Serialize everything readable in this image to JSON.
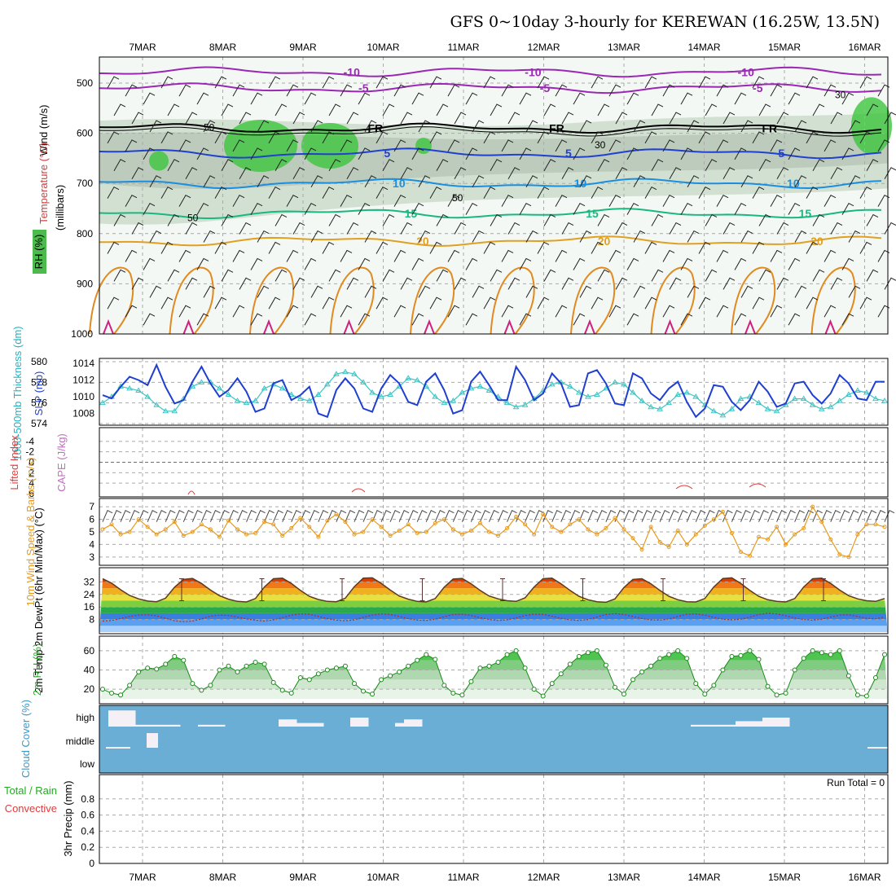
{
  "title": "GFS 0~10day 3-hourly for KEREWAN (16.25W, 13.5N)",
  "colors": {
    "cloud_bg": "#6aaed6",
    "rh_fill": "#3cc43c",
    "sfc_temp_fill": "#e03c00",
    "dewpt_fill": "#3a7fe0",
    "slp_line": "#1f3fd0",
    "thk_line": "#3fc4c4",
    "wind_line": "#e89a1c",
    "cape_lbl": "#c070c0",
    "li_lbl": "#e03c3c",
    "rh_lbl": "#22aa22",
    "precip_rain": "#22aa22",
    "precip_conv": "#e03c3c"
  },
  "chart_data": [
    {
      "type": "heatmap",
      "panel": "upper-air cross section",
      "x_dates": [
        "7MAR",
        "8MAR",
        "9MAR",
        "10MAR",
        "11MAR",
        "12MAR",
        "13MAR",
        "14MAR",
        "15MAR",
        "16MAR"
      ],
      "yticks": [
        "500",
        "600",
        "700",
        "800",
        "900",
        "1000"
      ],
      "ylabel": "(millibars)",
      "labels": [
        "Wind (m/s)",
        "Temperature (°C)",
        "RH (%)"
      ],
      "isotherm_labels": [
        "-10",
        "-5",
        "FR",
        "5",
        "10",
        "15",
        "20"
      ],
      "rh_contour_labels": [
        "30",
        "50"
      ],
      "isotherms_mb": [
        {
          "label": "-10",
          "mb": 478,
          "color": "#9a28b4"
        },
        {
          "label": "-5",
          "mb": 510,
          "color": "#9a28b4"
        },
        {
          "label": "FR",
          "mb": 590,
          "color": "#000000"
        },
        {
          "label": "5",
          "mb": 640,
          "color": "#2040d0"
        },
        {
          "label": "10",
          "mb": 700,
          "color": "#1c8ee0"
        },
        {
          "label": "15",
          "mb": 760,
          "color": "#18b880"
        },
        {
          "label": "20",
          "mb": 815,
          "color": "#e0a020"
        }
      ]
    },
    {
      "type": "line",
      "panel": "slp and thickness",
      "ylabel_left": "1000-500mb Thickness (dm)",
      "ylabel_right": "SLP (mb)",
      "yticks_left": [
        "580",
        "578",
        "576",
        "574"
      ],
      "yticks_right": [
        "1014",
        "1012",
        "1010",
        "1008"
      ],
      "ylim_left": [
        574,
        580
      ],
      "ylim_right": [
        1006.8,
        1014.2
      ],
      "series": [
        {
          "name": "SLP (mb)",
          "axis": "right",
          "values": [
            1010.2,
            1009.8,
            1011.2,
            1012.4,
            1012.0,
            1011.4,
            1013.8,
            1011.2,
            1009.2,
            1009.6,
            1011.8,
            1013.6,
            1011.6,
            1010.0,
            1010.8,
            1012.2,
            1010.6,
            1008.2,
            1008.6,
            1011.6,
            1012.0,
            1009.6,
            1010.2,
            1011.2,
            1008.0,
            1007.6,
            1010.8,
            1012.2,
            1011.0,
            1008.6,
            1008.2,
            1011.0,
            1012.6,
            1011.6,
            1009.4,
            1009.0,
            1011.8,
            1012.8,
            1010.8,
            1008.0,
            1008.4,
            1011.8,
            1013.0,
            1011.4,
            1009.6,
            1009.6,
            1013.6,
            1012.0,
            1009.6,
            1010.4,
            1012.8,
            1011.6,
            1008.8,
            1009.0,
            1012.8,
            1013.2,
            1011.6,
            1009.2,
            1009.0,
            1012.8,
            1012.2,
            1010.4,
            1009.6,
            1011.0,
            1011.8,
            1009.4,
            1007.6,
            1008.6,
            1011.4,
            1011.2,
            1009.4,
            1008.4,
            1009.6,
            1011.8,
            1010.6,
            1008.8,
            1009.2,
            1011.6,
            1011.8,
            1010.2,
            1009.2,
            1010.4,
            1012.6,
            1011.6,
            1009.8,
            1009.6,
            1011.8,
            1011.8
          ]
        },
        {
          "name": "1000-500mb Thickness (dm)",
          "axis": "left",
          "values": [
            576.0,
            576.6,
            577.6,
            577.4,
            577.2,
            576.6,
            575.8,
            575.2,
            575.2,
            576.4,
            577.6,
            578.0,
            578.0,
            577.4,
            576.8,
            576.2,
            576.0,
            576.2,
            577.4,
            577.8,
            577.4,
            576.8,
            576.4,
            576.2,
            576.8,
            577.8,
            578.8,
            579.0,
            578.8,
            578.0,
            577.0,
            576.6,
            576.8,
            577.6,
            578.4,
            578.2,
            577.6,
            576.6,
            576.0,
            576.2,
            577.0,
            577.4,
            577.6,
            577.2,
            576.6,
            576.0,
            575.6,
            575.8,
            576.4,
            577.2,
            577.8,
            578.0,
            577.6,
            577.0,
            576.6,
            576.8,
            577.4,
            578.0,
            577.8,
            577.0,
            576.2,
            575.6,
            575.4,
            576.0,
            576.8,
            577.0,
            576.6,
            575.8,
            575.2,
            574.8,
            575.4,
            576.4,
            576.6,
            576.0,
            575.4,
            575.2,
            575.8,
            576.4,
            576.4,
            575.8,
            575.4,
            575.6,
            576.2,
            576.8,
            577.2,
            577.0,
            576.4,
            576.2
          ]
        }
      ]
    },
    {
      "type": "line",
      "panel": "lifted index and cape",
      "ylabel_left": "Lifted Index",
      "ylabel_right": "CAPE (J/kg)",
      "yticks": [
        "-4",
        "-2",
        "0",
        "2",
        "4",
        "6"
      ],
      "ylim": [
        -6,
        6
      ],
      "values_li": []
    },
    {
      "type": "line",
      "panel": "10m wind",
      "ylabel": "10m Wind Speed & Barbs (m/s)",
      "yticks": [
        "7",
        "6",
        "5",
        "4",
        "3"
      ],
      "ylim": [
        2.6,
        7.4
      ],
      "series": [
        {
          "name": "10m Wind Speed",
          "values": [
            5.2,
            5.6,
            4.8,
            5.0,
            6.0,
            5.4,
            4.8,
            5.2,
            5.8,
            4.7,
            5.0,
            5.6,
            5.2,
            4.6,
            5.9,
            5.2,
            4.8,
            4.9,
            5.8,
            5.6,
            4.7,
            5.3,
            6.1,
            5.4,
            4.6,
            5.9,
            6.4,
            5.8,
            4.8,
            5.0,
            6.0,
            5.4,
            4.7,
            5.1,
            5.6,
            4.9,
            5.0,
            5.7,
            6.0,
            5.2,
            4.8,
            5.1,
            5.7,
            5.0,
            4.7,
            5.3,
            6.2,
            5.6,
            4.8,
            6.4,
            5.4,
            5.0,
            5.6,
            6.0,
            5.2,
            4.8,
            5.3,
            6.1,
            5.2,
            4.5,
            3.6,
            5.4,
            4.2,
            3.8,
            5.1,
            4.0,
            4.8,
            5.5,
            6.0,
            6.6,
            4.9,
            3.4,
            3.1,
            4.6,
            4.4,
            5.4,
            4.0,
            4.8,
            5.3,
            7.0,
            5.8,
            4.4,
            3.2,
            3.0,
            4.8,
            5.6,
            5.6,
            5.4
          ]
        }
      ]
    },
    {
      "type": "area",
      "panel": "2m temperature and dewpoint",
      "ylabel": "2m Temp 2m DewPt (6hr Min/Max) (°C)",
      "yticks": [
        "32",
        "24",
        "16",
        "8"
      ],
      "ylim": [
        0,
        40
      ],
      "series": [
        {
          "name": "2m Temp",
          "values": [
            34.0,
            31.2,
            27.0,
            23.4,
            21.2,
            19.8,
            19.4,
            21.6,
            28.6,
            33.6,
            34.2,
            31.0,
            26.8,
            23.2,
            21.0,
            19.6,
            19.2,
            21.4,
            28.8,
            34.0,
            34.4,
            31.0,
            26.6,
            22.8,
            20.8,
            19.6,
            19.4,
            21.6,
            29.0,
            34.4,
            34.6,
            31.0,
            26.8,
            23.0,
            21.0,
            19.6,
            19.2,
            21.4,
            28.6,
            33.8,
            34.2,
            30.8,
            26.6,
            23.0,
            21.2,
            20.0,
            19.6,
            21.8,
            28.8,
            34.0,
            34.4,
            30.8,
            26.6,
            22.8,
            20.6,
            19.4,
            19.0,
            21.2,
            28.4,
            33.6,
            34.0,
            30.8,
            26.6,
            22.8,
            20.6,
            19.4,
            19.2,
            21.4,
            28.8,
            34.2,
            34.6,
            31.0,
            26.6,
            22.8,
            20.6,
            19.6,
            19.2,
            21.4,
            28.8,
            34.0,
            34.4,
            31.0,
            26.8,
            23.2,
            21.2,
            20.0,
            19.6,
            21.4
          ]
        },
        {
          "name": "2m DewPt",
          "values": [
            7.0,
            7.4,
            8.6,
            10.0,
            10.8,
            11.0,
            10.4,
            8.8,
            7.2,
            6.6,
            7.0,
            8.4,
            10.2,
            10.8,
            10.6,
            9.6,
            8.4,
            7.6,
            7.0,
            7.8,
            9.2,
            10.8,
            11.6,
            11.4,
            10.0,
            8.6,
            7.6,
            7.2,
            7.8,
            9.4,
            10.8,
            11.6,
            11.2,
            10.0,
            8.6,
            7.6,
            7.4,
            8.2,
            9.8,
            11.2,
            11.4,
            10.6,
            9.2,
            8.0,
            7.4,
            7.8,
            9.0,
            10.6,
            11.4,
            11.2,
            10.2,
            8.8,
            7.8,
            7.4,
            8.0,
            9.6,
            11.2,
            11.8,
            11.2,
            10.0,
            8.6,
            7.8,
            7.6,
            8.4,
            10.0,
            11.4,
            11.6,
            10.8,
            9.4,
            8.2,
            7.8,
            8.2,
            9.6,
            11.2,
            12.0,
            11.6,
            10.4,
            9.0,
            8.0,
            7.6,
            8.2,
            9.6,
            10.8,
            11.0,
            10.0,
            8.8,
            8.4,
            9.6
          ]
        }
      ]
    },
    {
      "type": "area",
      "panel": "2m relative humidity",
      "ylabel": "2m RH (%)",
      "yticks": [
        "60",
        "40",
        "20"
      ],
      "ylim": [
        10,
        70
      ],
      "series": [
        {
          "name": "2m RH",
          "values": [
            20,
            16,
            14,
            24,
            38,
            42,
            41,
            46,
            54,
            50,
            26,
            19,
            24,
            40,
            44,
            38,
            44,
            48,
            46,
            27,
            19,
            16,
            32,
            30,
            36,
            40,
            42,
            44,
            26,
            18,
            15,
            30,
            34,
            38,
            44,
            50,
            56,
            51,
            24,
            16,
            14,
            28,
            42,
            44,
            48,
            56,
            60,
            42,
            20,
            13,
            26,
            36,
            46,
            54,
            58,
            60,
            45,
            22,
            15,
            30,
            38,
            44,
            52,
            56,
            60,
            52,
            26,
            15,
            24,
            40,
            54,
            55,
            60,
            51,
            23,
            14,
            16,
            40,
            52,
            60,
            58,
            56,
            60,
            34,
            14,
            13,
            32,
            56
          ]
        }
      ]
    },
    {
      "type": "bar",
      "panel": "cloud cover",
      "ylabel": "Cloud Cover (%)",
      "yticks": [
        "high",
        "middle",
        "low"
      ],
      "high_cover": [
        0.0,
        0.9,
        0.9,
        0.9,
        0.1,
        0.1,
        0.1,
        0.1,
        0.1,
        0.0,
        0.0,
        0.1,
        0.1,
        0.1,
        0.0,
        0.0,
        0.0,
        0.0,
        0.0,
        0.0,
        0.4,
        0.4,
        0.2,
        0.2,
        0.2,
        0.0,
        0.0,
        0.0,
        0.5,
        0.5,
        0.0,
        0.0,
        0.0,
        0.2,
        0.4,
        0.4,
        0.0,
        0.0,
        0.0,
        0.0,
        0.0,
        0.0,
        0.0,
        0.0,
        0.0,
        0.0,
        0.0,
        0.0,
        0.0,
        0.0,
        0.0,
        0.0,
        0.0,
        0.0,
        0.0,
        0.0,
        0.0,
        0.0,
        0.0,
        0.0,
        0.0,
        0.0,
        0.0,
        0.0,
        0.0,
        0.0,
        0.1,
        0.1,
        0.1,
        0.1,
        0.1,
        0.3,
        0.3,
        0.3,
        0.5,
        0.5,
        0.5,
        0.0,
        0.0,
        0.0,
        0.0,
        0.0,
        0.0,
        0.0,
        0.0,
        0.0,
        0.0,
        0.0
      ],
      "mid_cover": [
        0.0,
        0.0,
        0.0,
        0.0,
        0.0,
        0.0,
        0.0,
        0.0,
        0.0,
        0.0,
        0.0,
        0.0,
        0.0,
        0.0,
        0.0,
        0.0,
        0.0,
        0.0,
        0.0,
        0.0,
        0.0,
        0.0,
        0.0,
        0.0,
        0.0,
        0.0,
        0.0,
        0.0,
        0.0,
        0.0,
        0.0,
        0.0,
        0.0,
        0.0,
        0.0,
        0.0,
        0.0,
        0.0,
        0.0,
        0.0,
        0.0,
        0.0,
        0.0,
        0.0,
        0.0,
        0.0,
        0.0,
        0.0,
        0.0,
        0.0,
        0.0,
        0.0,
        0.0,
        0.0,
        0.0,
        0.0,
        0.0,
        0.0,
        0.0,
        0.0,
        0.0,
        0.0,
        0.0,
        0.0,
        0.0,
        0.0,
        0.0,
        0.0,
        0.0,
        0.0,
        0.0,
        0.0,
        0.0,
        0.0,
        0.0,
        0.0,
        0.0,
        0.0,
        0.0,
        0.0,
        0.0,
        0.0,
        0.0,
        0.0,
        0.0,
        0.0,
        0.0,
        0.0
      ]
    },
    {
      "type": "bar",
      "panel": "3hr precipitation",
      "ylabel": "3hr Precip (mm)",
      "legend": [
        "Total / Rain",
        "Convective"
      ],
      "annotation": "Run Total = 0",
      "yticks": [
        "0.8",
        "0.6",
        "0.4",
        "0.2",
        "0"
      ],
      "ylim": [
        0,
        1
      ],
      "values": []
    }
  ]
}
